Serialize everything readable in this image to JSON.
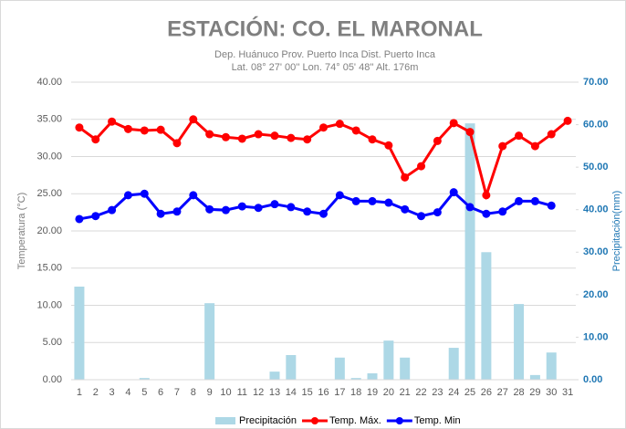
{
  "chart_data": {
    "type": "combo",
    "title": "ESTACIÓN: CO. EL MARONAL",
    "subtitle": [
      "Dep. Huánuco Prov. Puerto Inca  Dist. Puerto Inca",
      "Lat. 08° 27' 00'' Lon. 74° 05' 48'' Alt. 176m"
    ],
    "y_label": "Temperatura (°C)",
    "y2_label": "Precipitación(mm)",
    "categories": [
      "1",
      "2",
      "3",
      "4",
      "5",
      "6",
      "7",
      "8",
      "9",
      "10",
      "11",
      "12",
      "13",
      "14",
      "15",
      "16",
      "17",
      "18",
      "19",
      "20",
      "21",
      "22",
      "23",
      "24",
      "25",
      "26",
      "27",
      "28",
      "29",
      "30",
      "31"
    ],
    "ylim": [
      0,
      40
    ],
    "yticks": [
      {
        "value": 0,
        "label": "0.00"
      },
      {
        "value": 5,
        "label": "5.00"
      },
      {
        "value": 10,
        "label": "10.00"
      },
      {
        "value": 15,
        "label": "15.00"
      },
      {
        "value": 20,
        "label": "20.00"
      },
      {
        "value": 25,
        "label": "25.00"
      },
      {
        "value": 30,
        "label": "30.00"
      },
      {
        "value": 35,
        "label": "35.00"
      },
      {
        "value": 40,
        "label": "40.00"
      }
    ],
    "y2lim": [
      0,
      70
    ],
    "y2ticks": [
      {
        "value": 0,
        "label": "0.00"
      },
      {
        "value": 10,
        "label": "10.00"
      },
      {
        "value": 20,
        "label": "20.00"
      },
      {
        "value": 30,
        "label": "30.00"
      },
      {
        "value": 40,
        "label": "40.00"
      },
      {
        "value": 50,
        "label": "50.00"
      },
      {
        "value": 60,
        "label": "60.00"
      },
      {
        "value": 70,
        "label": "70.00"
      }
    ],
    "grid": true,
    "legend": "bottom",
    "series": [
      {
        "name": "Precipitación",
        "type": "bar",
        "axis": "y2",
        "color": "#add8e6",
        "values": [
          21.9,
          0,
          0,
          0,
          0.4,
          0,
          0,
          0,
          18.0,
          0,
          0,
          0,
          1.9,
          5.8,
          0,
          0,
          5.2,
          0.4,
          1.5,
          9.2,
          5.2,
          0,
          0,
          7.5,
          60.3,
          30.0,
          0,
          17.8,
          1.1,
          6.4,
          0
        ]
      },
      {
        "name": "Temp. Máx.",
        "type": "line",
        "color": "#ff0000",
        "values": [
          33.9,
          32.3,
          34.7,
          33.7,
          33.5,
          33.6,
          31.8,
          35.0,
          33.0,
          32.6,
          32.4,
          33.0,
          32.8,
          32.5,
          32.3,
          33.9,
          34.4,
          33.5,
          32.3,
          31.5,
          27.2,
          28.7,
          32.1,
          34.5,
          33.3,
          24.8,
          31.4,
          32.8,
          31.4,
          33.0,
          34.8
        ]
      },
      {
        "name": "Temp. Min",
        "type": "line",
        "color": "#0000ff",
        "values": [
          21.6,
          22.0,
          22.8,
          24.8,
          25.0,
          22.3,
          22.6,
          24.8,
          22.9,
          22.8,
          23.3,
          23.1,
          23.6,
          23.2,
          22.6,
          22.3,
          24.8,
          24.0,
          24.0,
          23.8,
          22.9,
          22.0,
          22.5,
          25.2,
          23.2,
          22.3,
          22.6,
          24.0,
          24.0,
          23.4,
          null
        ]
      }
    ]
  }
}
